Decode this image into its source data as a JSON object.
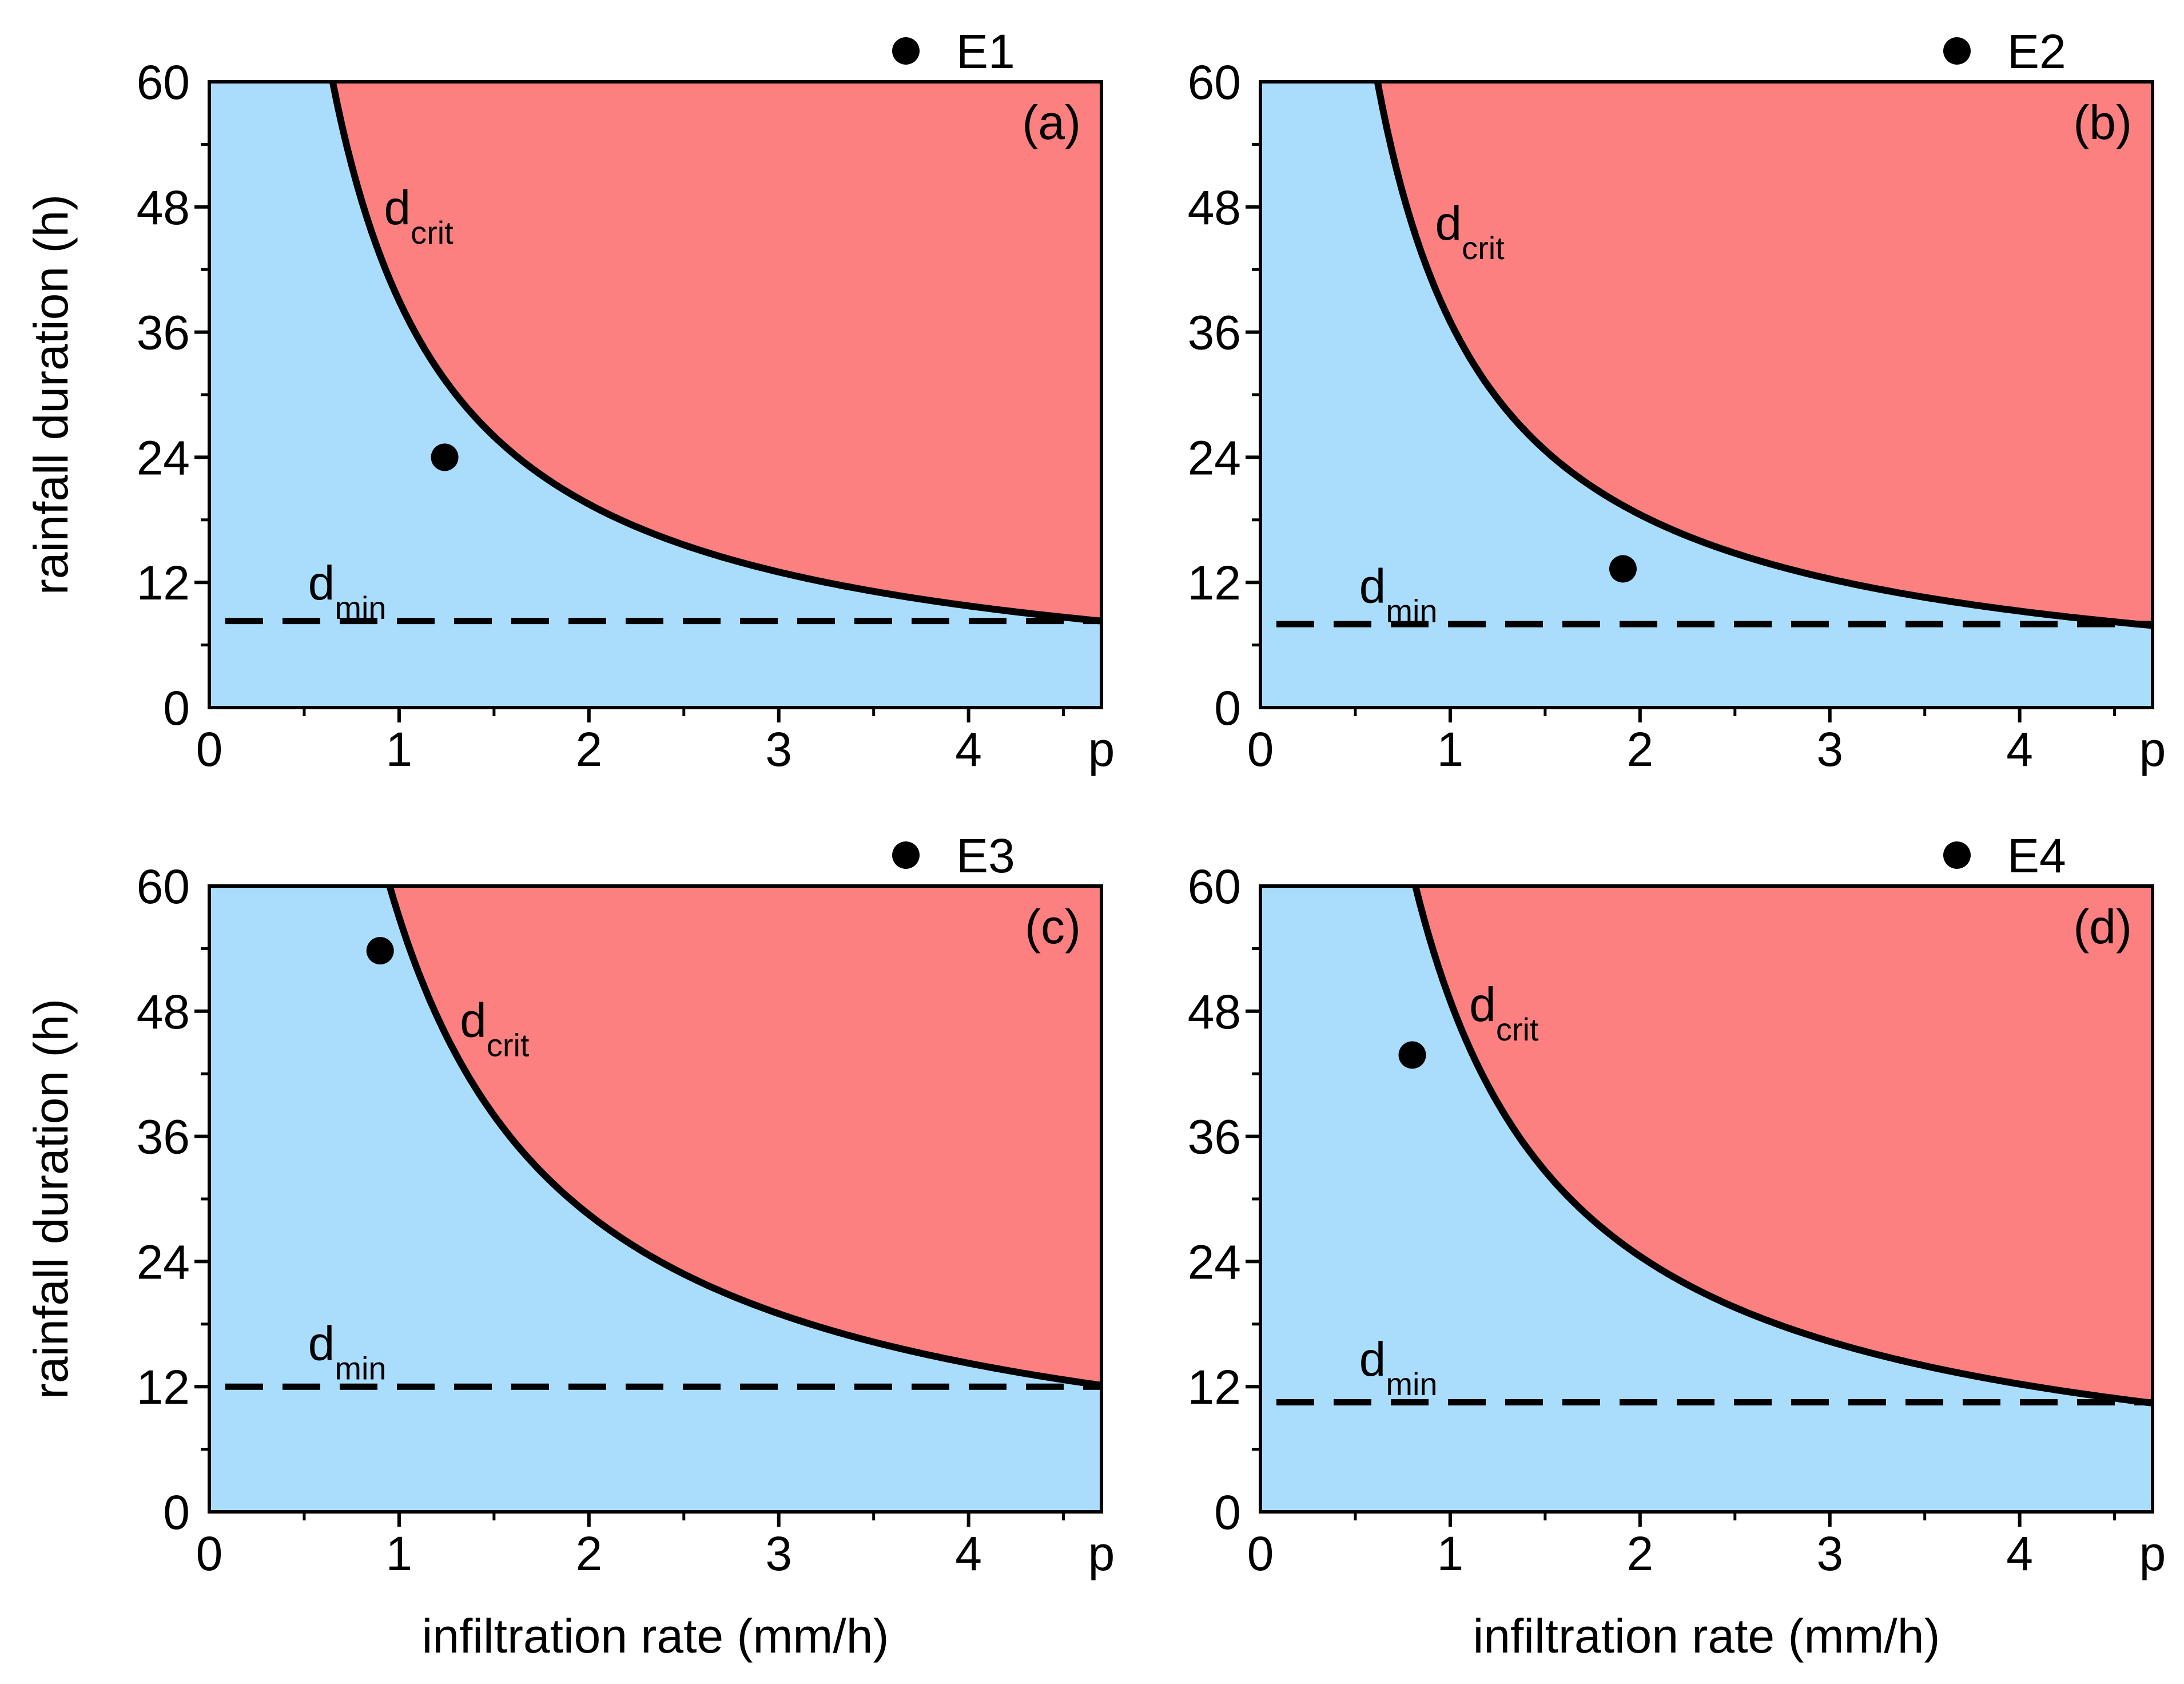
{
  "figure": {
    "colors": {
      "safe": "#aadcfc",
      "failure": "#fc8080",
      "line": "#000000",
      "marker": "#000000"
    }
  },
  "chart_data": [
    {
      "type": "scatter",
      "panel_label": "(a)",
      "legend": "E1",
      "xlabel": "",
      "ylabel": "rainfall duration (h)",
      "x_ticks": [
        "0",
        "1",
        "2",
        "3",
        "4",
        "p"
      ],
      "y_ticks": [
        "0",
        "12",
        "24",
        "36",
        "48",
        "60"
      ],
      "xlim": [
        0,
        4.7
      ],
      "ylim": [
        0,
        60
      ],
      "p": 4.7,
      "d_min": 8.3,
      "d_crit_k": 39,
      "event": {
        "x": 1.24,
        "y": 24.0
      },
      "crit_label": {
        "main": "d",
        "sub": "crit",
        "x": 0.92,
        "y": 48
      },
      "min_label": {
        "main": "d",
        "sub": "min",
        "x": 0.52,
        "y": 12
      }
    },
    {
      "type": "scatter",
      "panel_label": "(b)",
      "legend": "E2",
      "xlabel": "",
      "ylabel": "",
      "x_ticks": [
        "0",
        "1",
        "2",
        "3",
        "4",
        "p"
      ],
      "y_ticks": [
        "0",
        "12",
        "24",
        "36",
        "48",
        "60"
      ],
      "xlim": [
        0,
        4.7
      ],
      "ylim": [
        0,
        60
      ],
      "p": 4.7,
      "d_min": 8.0,
      "d_crit_k": 37,
      "event": {
        "x": 1.91,
        "y": 13.3
      },
      "crit_label": {
        "main": "d",
        "sub": "crit",
        "x": 0.92,
        "y": 46.5
      },
      "min_label": {
        "main": "d",
        "sub": "min",
        "x": 0.52,
        "y": 11.7
      }
    },
    {
      "type": "scatter",
      "panel_label": "(c)",
      "legend": "E3",
      "xlabel": "infiltration rate (mm/h)",
      "ylabel": "rainfall duration (h)",
      "x_ticks": [
        "0",
        "1",
        "2",
        "3",
        "4",
        "p"
      ],
      "y_ticks": [
        "0",
        "12",
        "24",
        "36",
        "48",
        "60"
      ],
      "xlim": [
        0,
        4.7
      ],
      "ylim": [
        0,
        60
      ],
      "p": 4.7,
      "d_min": 12.0,
      "d_crit_k": 57,
      "event": {
        "x": 0.9,
        "y": 53.8
      },
      "crit_label": {
        "main": "d",
        "sub": "crit",
        "x": 1.32,
        "y": 47.2
      },
      "min_label": {
        "main": "d",
        "sub": "min",
        "x": 0.52,
        "y": 16.2
      }
    },
    {
      "type": "scatter",
      "panel_label": "(d)",
      "legend": "E4",
      "xlabel": "infiltration rate (mm/h)",
      "ylabel": "",
      "x_ticks": [
        "0",
        "1",
        "2",
        "3",
        "4",
        "p"
      ],
      "y_ticks": [
        "0",
        "12",
        "24",
        "36",
        "48",
        "60"
      ],
      "xlim": [
        0,
        4.7
      ],
      "ylim": [
        0,
        60
      ],
      "p": 4.7,
      "d_min": 10.5,
      "d_crit_k": 49,
      "event": {
        "x": 0.8,
        "y": 43.8
      },
      "crit_label": {
        "main": "d",
        "sub": "crit",
        "x": 1.1,
        "y": 48.7
      },
      "min_label": {
        "main": "d",
        "sub": "min",
        "x": 0.52,
        "y": 14.7
      }
    }
  ]
}
